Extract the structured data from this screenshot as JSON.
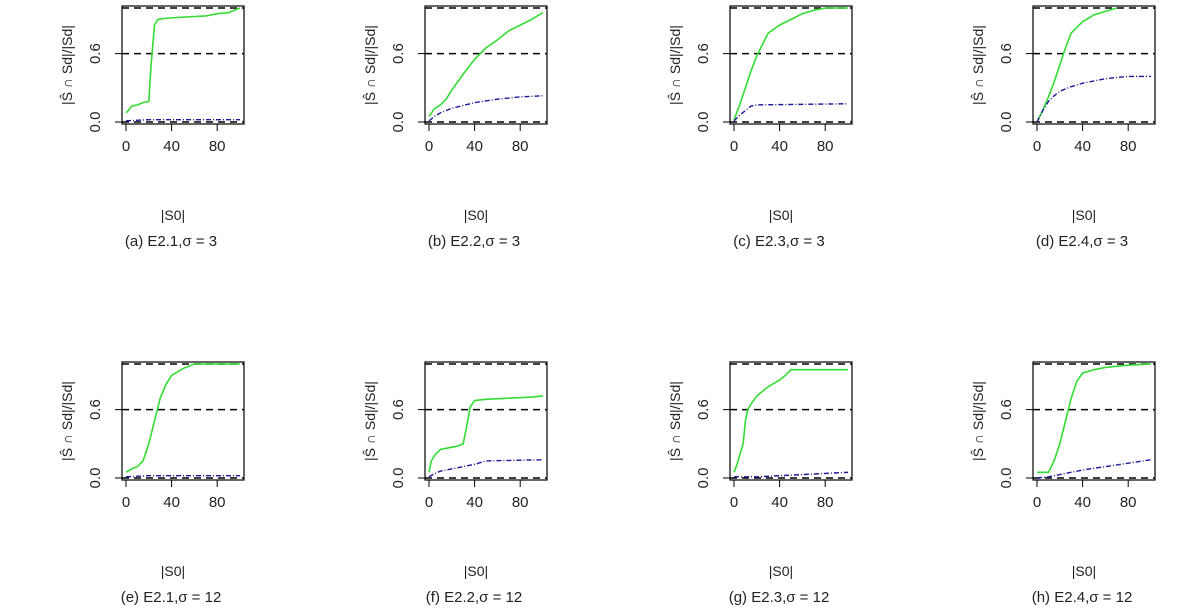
{
  "chart_data": [
    {
      "type": "line",
      "caption": "(a) E2.1,σ = 3",
      "xlabel": "|S0|",
      "ylabel": "|Ŝ ∩ Sd|/|Sd|",
      "xlim": [
        0,
        100
      ],
      "ylim": [
        0,
        1.0
      ],
      "xticks": [
        0,
        40,
        80
      ],
      "yticks": [
        0.0,
        0.6
      ],
      "hlines": [
        0,
        0.6,
        1.0
      ],
      "series": [
        {
          "color": "#33dd33",
          "style": "solid",
          "x": [
            0,
            2,
            5,
            10,
            15,
            20,
            22,
            25,
            28,
            35,
            50,
            70,
            80,
            90,
            100
          ],
          "y": [
            0.08,
            0.1,
            0.14,
            0.15,
            0.17,
            0.18,
            0.5,
            0.85,
            0.9,
            0.91,
            0.92,
            0.93,
            0.95,
            0.96,
            1.0
          ]
        },
        {
          "color": "#1a1a99",
          "style": "dashdot",
          "x": [
            0,
            20,
            50,
            100
          ],
          "y": [
            0.01,
            0.02,
            0.02,
            0.02
          ]
        }
      ]
    },
    {
      "type": "line",
      "caption": "(b) E2.2,σ = 3",
      "xlabel": "|S0|",
      "ylabel": "|Ŝ ∩ Sd|/|Sd|",
      "xlim": [
        0,
        100
      ],
      "ylim": [
        0,
        1.0
      ],
      "xticks": [
        0,
        40,
        80
      ],
      "yticks": [
        0.0,
        0.6
      ],
      "hlines": [
        0,
        0.6,
        1.0
      ],
      "series": [
        {
          "color": "#33dd33",
          "style": "solid",
          "x": [
            0,
            5,
            10,
            15,
            20,
            25,
            30,
            40,
            50,
            60,
            70,
            80,
            90,
            100
          ],
          "y": [
            0.05,
            0.12,
            0.15,
            0.2,
            0.28,
            0.35,
            0.42,
            0.55,
            0.65,
            0.72,
            0.8,
            0.85,
            0.9,
            0.96
          ]
        },
        {
          "color": "#1a1a99",
          "style": "dashdot",
          "x": [
            0,
            5,
            10,
            20,
            40,
            60,
            80,
            100
          ],
          "y": [
            0.01,
            0.05,
            0.08,
            0.12,
            0.17,
            0.2,
            0.22,
            0.23
          ]
        }
      ]
    },
    {
      "type": "line",
      "caption": "(c) E2.3,σ = 3",
      "xlabel": "|S0|",
      "ylabel": "|Ŝ ∩ Sd|/|Sd|",
      "xlim": [
        0,
        100
      ],
      "ylim": [
        0,
        1.0
      ],
      "xticks": [
        0,
        40,
        80
      ],
      "yticks": [
        0.0,
        0.6
      ],
      "hlines": [
        0,
        0.6,
        1.0
      ],
      "series": [
        {
          "color": "#33dd33",
          "style": "solid",
          "x": [
            0,
            5,
            10,
            15,
            20,
            25,
            30,
            40,
            50,
            60,
            70,
            80,
            90,
            100
          ],
          "y": [
            0.02,
            0.15,
            0.3,
            0.45,
            0.58,
            0.68,
            0.78,
            0.85,
            0.9,
            0.95,
            0.98,
            1.0,
            1.0,
            1.0
          ]
        },
        {
          "color": "#1a1a99",
          "style": "dashdot",
          "x": [
            0,
            5,
            10,
            15,
            20,
            100
          ],
          "y": [
            0.01,
            0.06,
            0.1,
            0.14,
            0.15,
            0.16
          ]
        }
      ]
    },
    {
      "type": "line",
      "caption": "(d) E2.4,σ = 3",
      "xlabel": "|S0|",
      "ylabel": "|Ŝ ∩ Sd|/|Sd|",
      "xlim": [
        0,
        100
      ],
      "ylim": [
        0,
        1.0
      ],
      "xticks": [
        0,
        40,
        80
      ],
      "yticks": [
        0.0,
        0.6
      ],
      "hlines": [
        0,
        0.6,
        1.0
      ],
      "series": [
        {
          "color": "#33dd33",
          "style": "solid",
          "x": [
            0,
            5,
            10,
            15,
            20,
            25,
            30,
            40,
            50,
            60,
            70
          ],
          "y": [
            0.0,
            0.1,
            0.22,
            0.35,
            0.5,
            0.65,
            0.78,
            0.88,
            0.94,
            0.97,
            1.0
          ]
        },
        {
          "color": "#1a1a99",
          "style": "dashdot",
          "x": [
            0,
            5,
            10,
            15,
            20,
            30,
            40,
            60,
            80,
            100
          ],
          "y": [
            0.0,
            0.1,
            0.18,
            0.23,
            0.27,
            0.31,
            0.34,
            0.38,
            0.4,
            0.4
          ]
        }
      ]
    },
    {
      "type": "line",
      "caption": "(e) E2.1,σ = 12",
      "xlabel": "|S0|",
      "ylabel": "|Ŝ ∩ Sd|/|Sd|",
      "xlim": [
        0,
        100
      ],
      "ylim": [
        0,
        1.0
      ],
      "xticks": [
        0,
        40,
        80
      ],
      "yticks": [
        0.0,
        0.6
      ],
      "hlines": [
        0,
        0.6,
        1.0
      ],
      "series": [
        {
          "color": "#33dd33",
          "style": "solid",
          "x": [
            0,
            5,
            10,
            15,
            20,
            25,
            30,
            35,
            40,
            50,
            60,
            70,
            100
          ],
          "y": [
            0.05,
            0.08,
            0.1,
            0.15,
            0.3,
            0.5,
            0.7,
            0.82,
            0.9,
            0.96,
            1.0,
            1.0,
            1.0
          ]
        },
        {
          "color": "#1a1a99",
          "style": "dashdot",
          "x": [
            0,
            20,
            50,
            100
          ],
          "y": [
            0.01,
            0.02,
            0.02,
            0.02
          ]
        }
      ]
    },
    {
      "type": "line",
      "caption": "(f) E2.2,σ = 12",
      "xlabel": "|S0|",
      "ylabel": "|Ŝ ∩ Sd|/|Sd|",
      "xlim": [
        0,
        100
      ],
      "ylim": [
        0,
        1.0
      ],
      "xticks": [
        0,
        40,
        80
      ],
      "yticks": [
        0.0,
        0.6
      ],
      "hlines": [
        0,
        0.6,
        1.0
      ],
      "series": [
        {
          "color": "#33dd33",
          "style": "solid",
          "x": [
            0,
            2,
            5,
            10,
            20,
            25,
            30,
            33,
            36,
            40,
            50,
            70,
            90,
            100
          ],
          "y": [
            0.05,
            0.15,
            0.2,
            0.25,
            0.27,
            0.28,
            0.3,
            0.45,
            0.62,
            0.68,
            0.69,
            0.7,
            0.71,
            0.72
          ]
        },
        {
          "color": "#1a1a99",
          "style": "dashdot",
          "x": [
            0,
            5,
            10,
            20,
            30,
            40,
            50,
            100
          ],
          "y": [
            0.01,
            0.04,
            0.06,
            0.08,
            0.1,
            0.12,
            0.15,
            0.16
          ]
        }
      ]
    },
    {
      "type": "line",
      "caption": "(g) E2.3,σ = 12",
      "xlabel": "|S0|",
      "ylabel": "|Ŝ ∩ Sd|/|Sd|",
      "xlim": [
        0,
        100
      ],
      "ylim": [
        0,
        1.0
      ],
      "xticks": [
        0,
        40,
        80
      ],
      "yticks": [
        0.0,
        0.6
      ],
      "hlines": [
        0,
        0.6,
        1.0
      ],
      "series": [
        {
          "color": "#33dd33",
          "style": "solid",
          "x": [
            0,
            2,
            5,
            8,
            10,
            12,
            15,
            20,
            30,
            40,
            45,
            50,
            60,
            100
          ],
          "y": [
            0.05,
            0.1,
            0.2,
            0.3,
            0.5,
            0.6,
            0.65,
            0.72,
            0.8,
            0.86,
            0.9,
            0.95,
            0.95,
            0.95
          ]
        },
        {
          "color": "#1a1a99",
          "style": "dashdot",
          "x": [
            0,
            20,
            40,
            60,
            80,
            100
          ],
          "y": [
            0.01,
            0.01,
            0.02,
            0.03,
            0.04,
            0.05
          ]
        }
      ]
    },
    {
      "type": "line",
      "caption": "(h) E2.4,σ = 12",
      "xlabel": "|S0|",
      "ylabel": "|Ŝ ∩ Sd|/|Sd|",
      "xlim": [
        0,
        100
      ],
      "ylim": [
        0,
        1.0
      ],
      "xticks": [
        0,
        40,
        80
      ],
      "yticks": [
        0.0,
        0.6
      ],
      "hlines": [
        0,
        0.6,
        1.0
      ],
      "series": [
        {
          "color": "#33dd33",
          "style": "solid",
          "x": [
            0,
            5,
            10,
            15,
            20,
            25,
            30,
            35,
            40,
            50,
            60,
            80,
            100
          ],
          "y": [
            0.05,
            0.05,
            0.05,
            0.15,
            0.3,
            0.5,
            0.7,
            0.85,
            0.92,
            0.95,
            0.97,
            0.99,
            1.0
          ]
        },
        {
          "color": "#1a1a99",
          "style": "dashdot",
          "x": [
            0,
            10,
            20,
            40,
            60,
            80,
            100
          ],
          "y": [
            0.0,
            0.01,
            0.03,
            0.07,
            0.1,
            0.13,
            0.16
          ]
        }
      ]
    }
  ]
}
